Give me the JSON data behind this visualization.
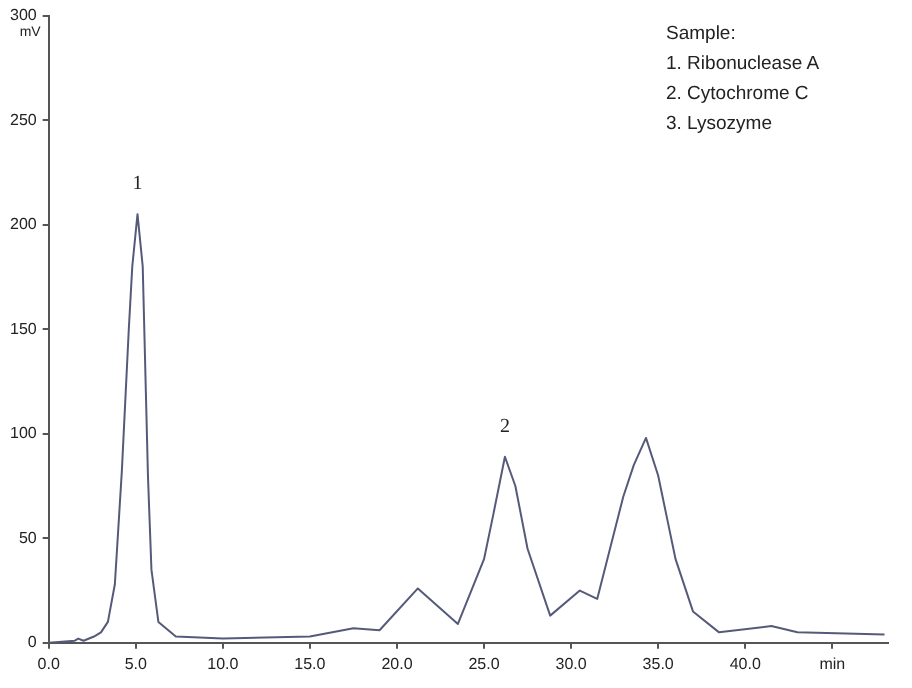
{
  "chart_data": {
    "type": "line",
    "ylabel": "mV",
    "annotations": [
      "Sample:",
      "1. Ribonuclease A",
      "2. Cytochrome C",
      "3. Lysozyme",
      {
        "text": "1",
        "x": 5.1,
        "y": 205
      },
      {
        "text": "2",
        "x": 26.2,
        "y": 89
      }
    ],
    "x": [
      0,
      1.5,
      1.7,
      2.0,
      2.6,
      3.0,
      3.4,
      3.8,
      4.2,
      4.6,
      4.8,
      5.1,
      5.4,
      5.7,
      5.9,
      6.3,
      7.3,
      10,
      15,
      17.5,
      19,
      21.2,
      23.5,
      25,
      25.5,
      26.2,
      26.8,
      27.5,
      28.8,
      30.5,
      31.5,
      33,
      33.6,
      34.3,
      35,
      35.5,
      36,
      37,
      38.5,
      41.5,
      43,
      48
    ],
    "series": [
      {
        "color": "#555a7a",
        "values": [
          0,
          1,
          2,
          1,
          3,
          5,
          10,
          28,
          82,
          150,
          180,
          205,
          180,
          80,
          35,
          10,
          3,
          2,
          3,
          7,
          6,
          26,
          9,
          40,
          60,
          89,
          75,
          45,
          13,
          25,
          21,
          70,
          85,
          98,
          80,
          60,
          40,
          15,
          5,
          8,
          5,
          4
        ]
      }
    ],
    "xlim": [
      0,
      48.2
    ],
    "ylim": [
      0,
      300
    ],
    "xticks": [
      {
        "value": 0,
        "label": "0.0"
      },
      {
        "value": 5,
        "label": "5.0"
      },
      {
        "value": 10,
        "label": "10.0"
      },
      {
        "value": 15,
        "label": "15.0"
      },
      {
        "value": 20,
        "label": "20.0"
      },
      {
        "value": 25,
        "label": "25.0"
      },
      {
        "value": 30,
        "label": "30.0"
      },
      {
        "value": 35,
        "label": "35.0"
      },
      {
        "value": 40,
        "label": "40.0"
      },
      {
        "value": 45,
        "label": "min"
      }
    ],
    "yticks": [
      0,
      50,
      100,
      150,
      200,
      250,
      300
    ],
    "grid": false,
    "legend": false,
    "marker": "none",
    "line_style": "solid"
  }
}
